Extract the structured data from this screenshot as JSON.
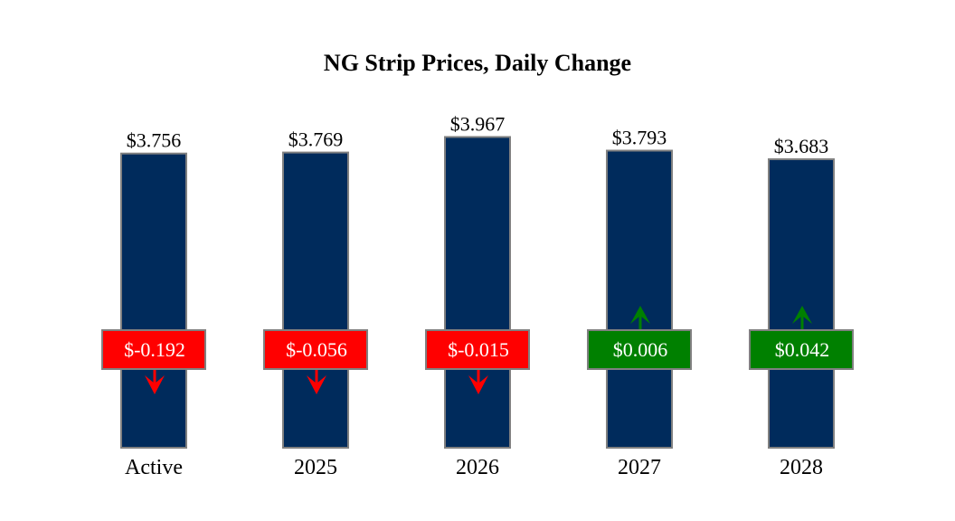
{
  "chart_data": {
    "type": "bar",
    "title": "NG Strip Prices, Daily Change",
    "categories": [
      "Active",
      "2025",
      "2026",
      "2027",
      "2028"
    ],
    "values": [
      3.756,
      3.769,
      3.967,
      3.793,
      3.683
    ],
    "value_labels": [
      "$3.756",
      "$3.769",
      "$3.967",
      "$3.793",
      "$3.683"
    ],
    "changes": [
      -0.192,
      -0.056,
      -0.015,
      0.006,
      0.042
    ],
    "change_labels": [
      "$-0.192",
      "$-0.056",
      "$-0.015",
      "$0.006",
      "$0.042"
    ],
    "xlabel": "",
    "ylabel": "",
    "ylim": [
      0,
      4.0
    ],
    "grid": false,
    "colors": {
      "bar": "#002b5c",
      "bar_border": "#808080",
      "down": "#ff0000",
      "up": "#008000"
    }
  }
}
